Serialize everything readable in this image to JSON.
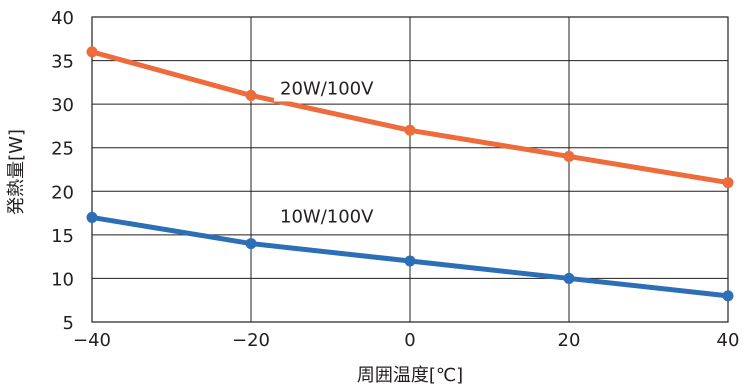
{
  "chart_data": {
    "type": "line",
    "title": "",
    "xlabel": "周囲温度[℃]",
    "ylabel": "発熱量[W]",
    "x": [
      -40,
      -20,
      0,
      20,
      40
    ],
    "x_tick_labels": [
      "−40",
      "−20",
      "0",
      "20",
      "40"
    ],
    "xlim": [
      -40,
      40
    ],
    "y_ticks": [
      5,
      10,
      15,
      20,
      25,
      30,
      35,
      40
    ],
    "ylim": [
      5,
      40
    ],
    "grid": true,
    "legend": "inline labels",
    "series": [
      {
        "name": "20W/100V",
        "color": "#ee6b3b",
        "values": [
          36,
          31,
          27,
          24,
          21
        ]
      },
      {
        "name": "10W/100V",
        "color": "#2d6fb7",
        "values": [
          17,
          14,
          12,
          10,
          8
        ]
      }
    ]
  }
}
